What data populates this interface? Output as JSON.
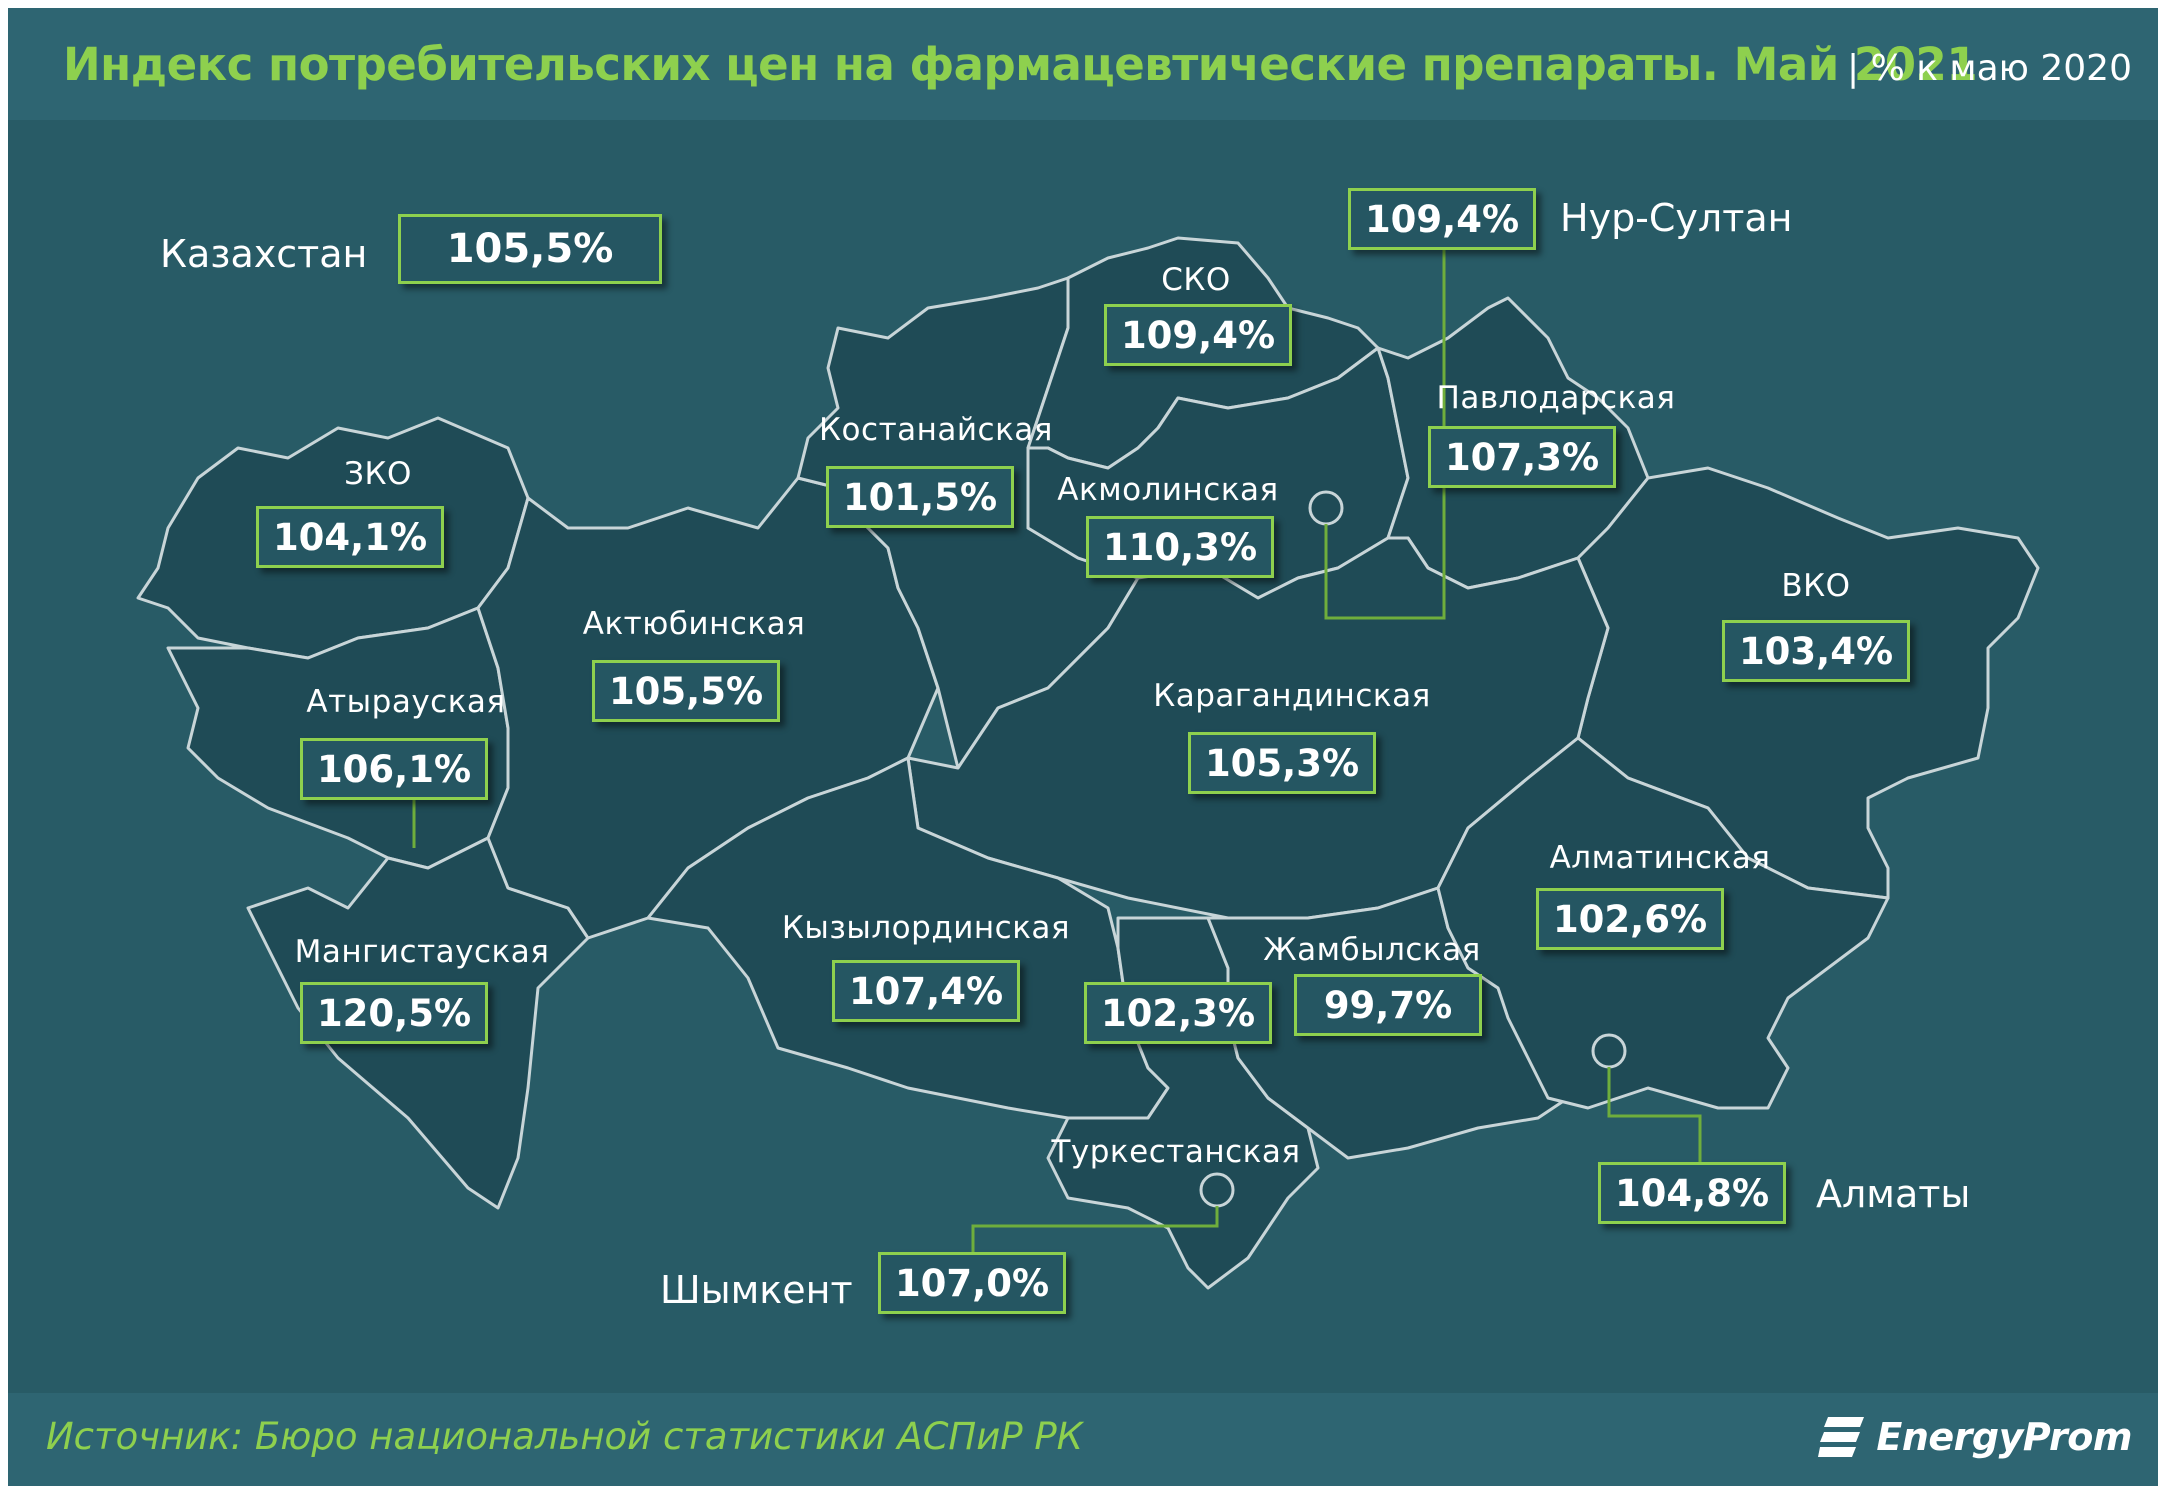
{
  "title": "Индекс потребительских цен на  фармацевтические препараты. Май  2021",
  "subtitle": "| % к маю 2020",
  "source": "Источник: Бюро национальной  статистики АСПиР РК",
  "logo": {
    "text": "EnergyProm",
    "icon": "energyprom-logo-icon"
  },
  "colors": {
    "background": "#285b66",
    "accent": "#8ed04e",
    "region_fill": "#1f4b56",
    "border": "#c8d5d8"
  },
  "kazakhstan": {
    "name": "Казахстан",
    "value": "105,5%"
  },
  "regions": {
    "zko": {
      "name": "ЗКО",
      "value": "104,1%"
    },
    "aktobe": {
      "name": "Актюбинская",
      "value": "105,5%"
    },
    "atyrau": {
      "name": "Атырауская",
      "value": "106,1%"
    },
    "mangystau": {
      "name": "Мангистауская",
      "value": "120,5%"
    },
    "kostanay": {
      "name": "Костанайская",
      "value": "101,5%"
    },
    "sko": {
      "name": "СКО",
      "value": "109,4%"
    },
    "akmola": {
      "name": "Акмолинская",
      "value": "110,3%"
    },
    "pavlodar": {
      "name": "Павлодарская",
      "value": "107,3%"
    },
    "vko": {
      "name": "ВКО",
      "value": "103,4%"
    },
    "karaganda": {
      "name": "Карагандинская",
      "value": "105,3%"
    },
    "kyzylorda": {
      "name": "Кызылординская",
      "value": "107,4%"
    },
    "turkestan": {
      "name": "Туркестанская",
      "value": "102,3%"
    },
    "zhambyl": {
      "name": "Жамбылская",
      "value": "99,7%"
    },
    "almaty_region": {
      "name": "Алматинская",
      "value": "102,6%"
    }
  },
  "cities": {
    "nur_sultan": {
      "name": "Нур-Султан",
      "value": "109,4%"
    },
    "almaty": {
      "name": "Алматы",
      "value": "104,8%"
    },
    "shymkent": {
      "name": "Шымкент",
      "value": "107,0%"
    }
  }
}
